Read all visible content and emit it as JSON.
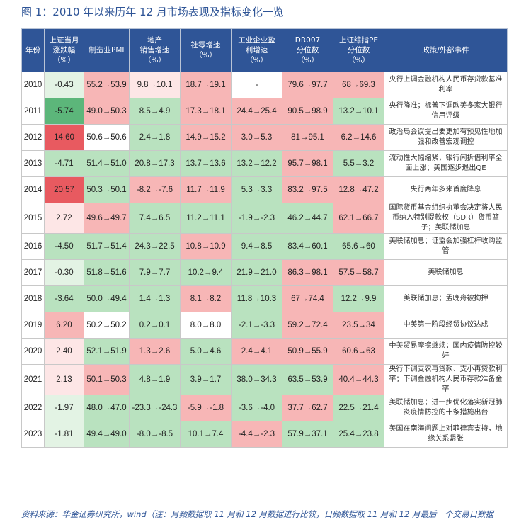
{
  "title": "图 1：2010 年以来历年 12 月市场表现及指标变化一览",
  "note": "资料来源：华金证券研究所，wind（注：月频数据取 11 月和 12 月数据进行比较，日频数据取 11 月和 12 月最后一个交易日数据",
  "colors": {
    "header_bg": "#2f5597",
    "pos_strong": "#e85a60",
    "pos_mid": "#f7b6b6",
    "pos_light": "#fde6e6",
    "neg_strong": "#5cb67a",
    "neg_mid": "#b9e2bf",
    "neg_light": "#e3f3e4",
    "neutral": "#ffffff"
  },
  "chart_data": {
    "type": "table",
    "columns": [
      "年份",
      "上证当月涨跌幅（%）",
      "制造业PMI",
      "地产销售增速（%）",
      "社零增速（%）",
      "工业企业盈利增速（%）",
      "DR007分位数（%）",
      "上证综指PE分位数（%）",
      "政策/外部事件"
    ],
    "rows": [
      {
        "year": "2010",
        "sh": "-0.43",
        "pmi": "55.2→53.9",
        "estate": "9.8→10.1",
        "retail": "18.7→19.1",
        "profit": "-",
        "dr007": "79.6→97.7",
        "pe": "68→69.3",
        "policy": "央行上调金融机构人民币存贷款基准利率"
      },
      {
        "year": "2011",
        "sh": "-5.74",
        "pmi": "49.0→50.3",
        "estate": "8.5→4.9",
        "retail": "17.3→18.1",
        "profit": "24.4→25.4",
        "dr007": "90.5→98.9",
        "pe": "13.2→10.1",
        "policy": "央行降准；标普下调欧美多家大银行信用评级"
      },
      {
        "year": "2012",
        "sh": "14.60",
        "pmi": "50.6→50.6",
        "estate": "2.4→1.8",
        "retail": "14.9→15.2",
        "profit": "3.0→5.3",
        "dr007": "81→95.1",
        "pe": "6.2→14.6",
        "policy": "政治局会议提出要更加有预见性地加强和改善宏观调控"
      },
      {
        "year": "2013",
        "sh": "-4.71",
        "pmi": "51.4→51.0",
        "estate": "20.8→17.3",
        "retail": "13.7→13.6",
        "profit": "13.2→12.2",
        "dr007": "95.7→98.1",
        "pe": "5.5→3.2",
        "policy": "流动性大幅缩紧，银行间拆借利率全面上涨；美国逐步退出QE"
      },
      {
        "year": "2014",
        "sh": "20.57",
        "pmi": "50.3→50.1",
        "estate": "-8.2→-7.6",
        "retail": "11.7→11.9",
        "profit": "5.3→3.3",
        "dr007": "83.2→97.5",
        "pe": "12.8→47.2",
        "policy": "央行两年多来首度降息"
      },
      {
        "year": "2015",
        "sh": "2.72",
        "pmi": "49.6→49.7",
        "estate": "7.4→6.5",
        "retail": "11.2→11.1",
        "profit": "-1.9→-2.3",
        "dr007": "46.2→44.7",
        "pe": "62.1→66.7",
        "policy": "国际货币基金组织执董会决定将人民币纳入特别提款权（SDR）货币篮子；美联储加息"
      },
      {
        "year": "2016",
        "sh": "-4.50",
        "pmi": "51.7→51.4",
        "estate": "24.3→22.5",
        "retail": "10.8→10.9",
        "profit": "9.4→8.5",
        "dr007": "83.4→60.1",
        "pe": "65.6→60",
        "policy": "美联储加息；证监会加强杠杆收购监管"
      },
      {
        "year": "2017",
        "sh": "-0.30",
        "pmi": "51.8→51.6",
        "estate": "7.9→7.7",
        "retail": "10.2→9.4",
        "profit": "21.9→21.0",
        "dr007": "86.3→98.1",
        "pe": "57.5→58.7",
        "policy": "美联储加息"
      },
      {
        "year": "2018",
        "sh": "-3.64",
        "pmi": "50.0→49.4",
        "estate": "1.4→1.3",
        "retail": "8.1→8.2",
        "profit": "11.8→10.3",
        "dr007": "67→74.4",
        "pe": "12.2→9.9",
        "policy": "美联储加息；孟晚舟被拘押"
      },
      {
        "year": "2019",
        "sh": "6.20",
        "pmi": "50.2→50.2",
        "estate": "0.2→0.1",
        "retail": "8.0→8.0",
        "profit": "-2.1→-3.3",
        "dr007": "59.2→72.4",
        "pe": "23.5→34",
        "policy": "中美第一阶段经贸协议达成"
      },
      {
        "year": "2020",
        "sh": "2.40",
        "pmi": "52.1→51.9",
        "estate": "1.3→2.6",
        "retail": "5.0→4.6",
        "profit": "2.4→4.1",
        "dr007": "50.9→55.9",
        "pe": "60.6→63",
        "policy": "中美贸易摩擦继续；国内疫情防控较好"
      },
      {
        "year": "2021",
        "sh": "2.13",
        "pmi": "50.1→50.3",
        "estate": "4.8→1.9",
        "retail": "3.9→1.7",
        "profit": "38.0→34.3",
        "dr007": "63.5→53.9",
        "pe": "40.4→44.3",
        "policy": "央行下调支农再贷款、支小再贷款利率；下调金融机构人民币存款准备金率"
      },
      {
        "year": "2022",
        "sh": "-1.97",
        "pmi": "48.0→47.0",
        "estate": "-23.3→-24.3",
        "retail": "-5.9→-1.8",
        "profit": "-3.6→-4.0",
        "dr007": "37.7→62.7",
        "pe": "22.5→21.4",
        "policy": "美联储加息；进一步优化落实新冠肺炎疫情防控的十条措施出台"
      },
      {
        "year": "2023",
        "sh": "-1.81",
        "pmi": "49.4→49.0",
        "estate": "-8.0→-8.5",
        "retail": "10.1→7.4",
        "profit": "-4.4→-2.3",
        "dr007": "57.9→37.1",
        "pe": "25.4→23.8",
        "policy": "美国在南海问题上对菲律宾支持，地缘关系紧张"
      }
    ],
    "cell_colors": [
      [
        "neutral",
        "neg_light",
        "pos_mid",
        "pos_light",
        "pos_mid",
        "neutral",
        "pos_mid",
        "pos_mid",
        "neutral"
      ],
      [
        "neutral",
        "neg_strong",
        "pos_mid",
        "neg_mid",
        "pos_mid",
        "pos_mid",
        "pos_mid",
        "neg_mid",
        "neutral"
      ],
      [
        "neutral",
        "pos_strong",
        "neutral",
        "neg_mid",
        "pos_mid",
        "pos_mid",
        "pos_mid",
        "pos_mid",
        "neutral"
      ],
      [
        "neutral",
        "neg_mid",
        "neg_mid",
        "neg_mid",
        "neg_mid",
        "neg_mid",
        "pos_mid",
        "neg_mid",
        "neutral"
      ],
      [
        "neutral",
        "pos_strong",
        "neg_mid",
        "pos_mid",
        "pos_mid",
        "neg_mid",
        "pos_mid",
        "pos_mid",
        "neutral"
      ],
      [
        "neutral",
        "pos_light",
        "pos_mid",
        "neg_mid",
        "neg_mid",
        "neg_mid",
        "neg_mid",
        "pos_mid",
        "neutral"
      ],
      [
        "neutral",
        "neg_mid",
        "neg_mid",
        "neg_mid",
        "pos_mid",
        "neg_mid",
        "neg_mid",
        "neg_mid",
        "neutral"
      ],
      [
        "neutral",
        "neg_light",
        "neg_mid",
        "neg_mid",
        "neg_mid",
        "neg_mid",
        "pos_mid",
        "pos_mid",
        "neutral"
      ],
      [
        "neutral",
        "neg_mid",
        "neg_mid",
        "neg_mid",
        "pos_mid",
        "neg_mid",
        "pos_mid",
        "neg_mid",
        "neutral"
      ],
      [
        "neutral",
        "pos_mid",
        "neutral",
        "neg_mid",
        "neutral",
        "neg_mid",
        "pos_mid",
        "pos_mid",
        "neutral"
      ],
      [
        "neutral",
        "pos_light",
        "neg_mid",
        "pos_mid",
        "neg_mid",
        "pos_mid",
        "pos_mid",
        "pos_mid",
        "neutral"
      ],
      [
        "neutral",
        "pos_light",
        "pos_mid",
        "neg_mid",
        "neg_mid",
        "neg_mid",
        "neg_mid",
        "pos_mid",
        "neutral"
      ],
      [
        "neutral",
        "neg_light",
        "neg_mid",
        "neg_mid",
        "pos_mid",
        "neg_mid",
        "pos_mid",
        "neg_mid",
        "neutral"
      ],
      [
        "neutral",
        "neg_light",
        "neg_mid",
        "neg_mid",
        "neg_mid",
        "pos_mid",
        "neg_mid",
        "neg_mid",
        "neutral"
      ]
    ]
  }
}
